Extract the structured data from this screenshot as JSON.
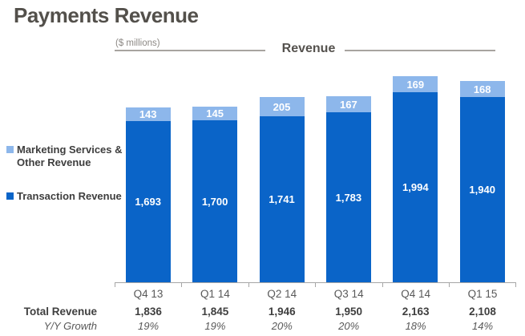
{
  "title": "Payments Revenue",
  "header": {
    "units_label": "($ millions)",
    "chart_title": "Revenue"
  },
  "legend": {
    "marketing": {
      "label_line1": "Marketing Services &",
      "label_line2": "Other Revenue",
      "color": "#8DB7EB"
    },
    "transaction": {
      "label": "Transaction Revenue",
      "color": "#0A64C8"
    }
  },
  "chart_data": {
    "type": "bar",
    "stacked": true,
    "title": "Revenue",
    "units": "($ millions)",
    "categories": [
      "Q4 13",
      "Q1 14",
      "Q2 14",
      "Q3 14",
      "Q4 14",
      "Q1 15"
    ],
    "series": [
      {
        "name": "Transaction Revenue",
        "color": "#0A64C8",
        "values": [
          1693,
          1700,
          1741,
          1783,
          1994,
          1940
        ],
        "labels": [
          "1,693",
          "1,700",
          "1,741",
          "1,783",
          "1,994",
          "1,940"
        ]
      },
      {
        "name": "Marketing Services & Other Revenue",
        "color": "#8DB7EB",
        "values": [
          143,
          145,
          205,
          167,
          169,
          168
        ],
        "labels": [
          "143",
          "145",
          "205",
          "167",
          "169",
          "168"
        ]
      }
    ],
    "totals": {
      "label": "Total Revenue",
      "values": [
        1836,
        1845,
        1946,
        1950,
        2163,
        2108
      ],
      "labels": [
        "1,836",
        "1,845",
        "1,946",
        "1,950",
        "2,163",
        "2,108"
      ]
    },
    "growth": {
      "label": "Y/Y Growth",
      "labels": [
        "19%",
        "19%",
        "20%",
        "20%",
        "18%",
        "14%"
      ]
    },
    "ylim": [
      0,
      2250
    ],
    "grid": false,
    "legend_position": "left"
  }
}
